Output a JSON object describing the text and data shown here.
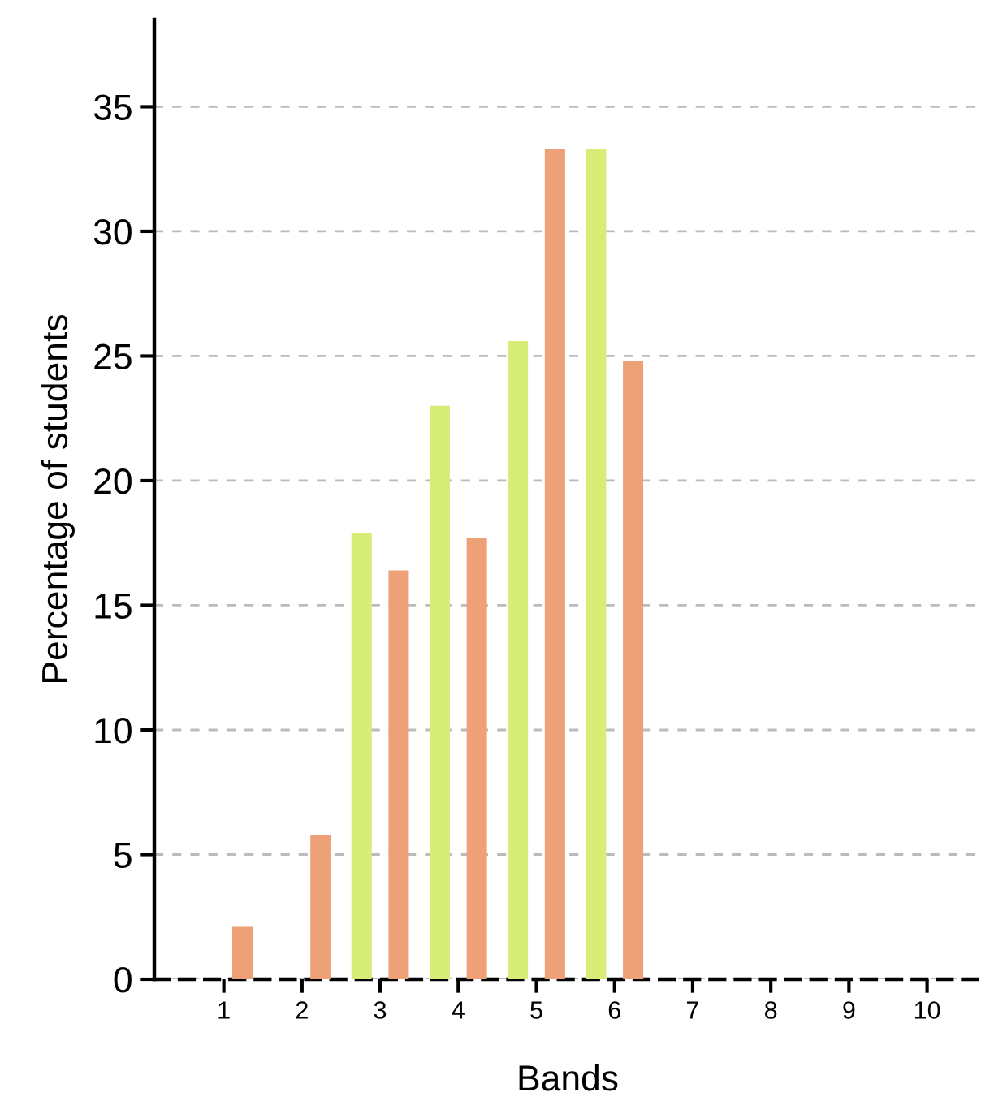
{
  "chart_data": {
    "type": "bar",
    "xlabel": "Bands",
    "ylabel": "Percentage of students",
    "categories": [
      "1",
      "2",
      "3",
      "4",
      "5",
      "6",
      "7",
      "8",
      "9",
      "10"
    ],
    "series": [
      {
        "color": "#d8ec78",
        "values": [
          0,
          0,
          17.9,
          23.0,
          25.6,
          33.3,
          0,
          0,
          0,
          0
        ]
      },
      {
        "color": "#eea077",
        "values": [
          2.1,
          5.8,
          16.4,
          17.7,
          33.3,
          24.8,
          0,
          0,
          0,
          0
        ]
      }
    ],
    "ylim": [
      0,
      38.5
    ],
    "yticks": [
      0,
      5,
      10,
      15,
      20,
      25,
      30,
      35
    ],
    "grid": "y"
  }
}
